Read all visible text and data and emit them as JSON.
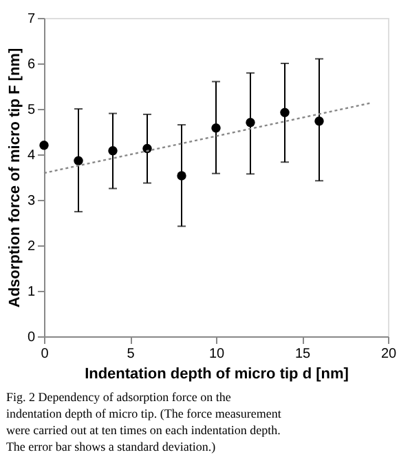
{
  "chart_data": {
    "type": "scatter",
    "xlabel": "Indentation depth of micro tip d  [nm]",
    "ylabel": "Adsorption force of micro tip F [nm]",
    "annotations": [
      "Fig. 2  Dependency of adsorption force on the indentation depth of micro tip. (The force measurement were carried out at ten times on each indentation depth. The error bar shows a standard deviation.)"
    ],
    "xlim": [
      0,
      20
    ],
    "xticks": [
      0,
      5,
      10,
      15,
      20
    ],
    "ylim": [
      0,
      7
    ],
    "yticks": [
      0,
      1,
      2,
      3,
      4,
      5,
      6,
      7
    ],
    "grid": false,
    "series": [
      {
        "color": "#000000",
        "marker": "circle",
        "x": [
          0,
          2,
          4,
          6,
          8,
          10,
          12,
          14,
          16
        ],
        "values": [
          4.2,
          3.86,
          4.08,
          4.13,
          3.53,
          4.58,
          4.7,
          4.92,
          4.73
        ],
        "errors": [
          null,
          [
            2.74,
            5.0
          ],
          [
            3.25,
            4.9
          ],
          [
            3.37,
            4.88
          ],
          [
            2.42,
            4.65
          ],
          [
            3.58,
            5.6
          ],
          [
            3.57,
            5.79
          ],
          [
            3.83,
            6.0
          ],
          [
            3.42,
            6.1
          ]
        ]
      },
      {
        "type": "line",
        "color": "#888888",
        "line_style": "dotted",
        "x": [
          0,
          19
        ],
        "values": [
          3.59,
          5.13
        ]
      }
    ]
  }
}
